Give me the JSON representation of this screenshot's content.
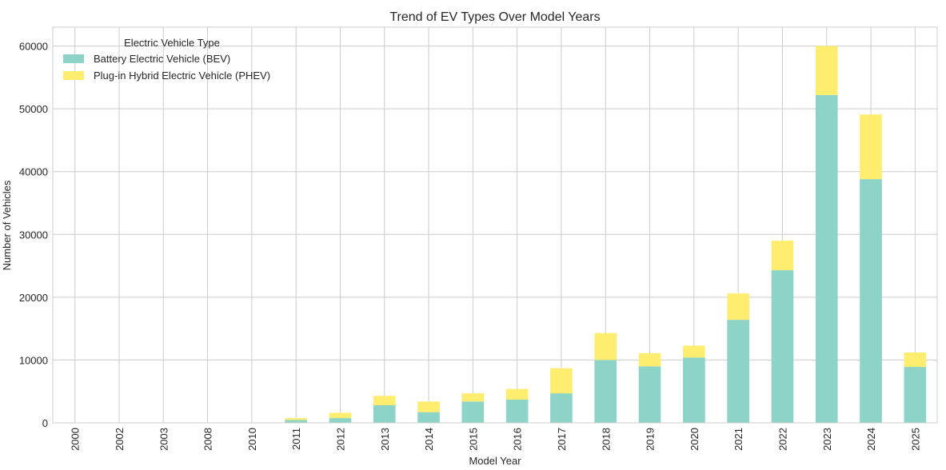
{
  "chart_data": {
    "type": "bar",
    "stacked": true,
    "title": "Trend of EV Types Over Model Years",
    "xlabel": "Model Year",
    "ylabel": "Number of Vehicles",
    "ylim": [
      0,
      63000
    ],
    "yticks": [
      0,
      10000,
      20000,
      30000,
      40000,
      50000,
      60000
    ],
    "grid": true,
    "legend": {
      "title": "Electric Vehicle Type",
      "placement": "top-left"
    },
    "categories": [
      "2000",
      "2002",
      "2003",
      "2008",
      "2010",
      "2011",
      "2012",
      "2013",
      "2014",
      "2015",
      "2016",
      "2017",
      "2018",
      "2019",
      "2020",
      "2021",
      "2022",
      "2023",
      "2024",
      "2025"
    ],
    "series": [
      {
        "name": "Battery Electric Vehicle (BEV)",
        "color": "#8dd3c7",
        "values": [
          5,
          2,
          3,
          20,
          20,
          450,
          750,
          2800,
          1700,
          3400,
          3700,
          4700,
          10000,
          9000,
          10400,
          16400,
          24300,
          52200,
          38800,
          8900
        ]
      },
      {
        "name": "Plug-in Hybrid Electric Vehicle (PHEV)",
        "color": "#ffed6f",
        "values": [
          0,
          0,
          0,
          0,
          0,
          300,
          850,
          1500,
          1700,
          1300,
          1700,
          4000,
          4300,
          2100,
          1900,
          4200,
          4700,
          7800,
          10300,
          2300
        ]
      }
    ]
  }
}
